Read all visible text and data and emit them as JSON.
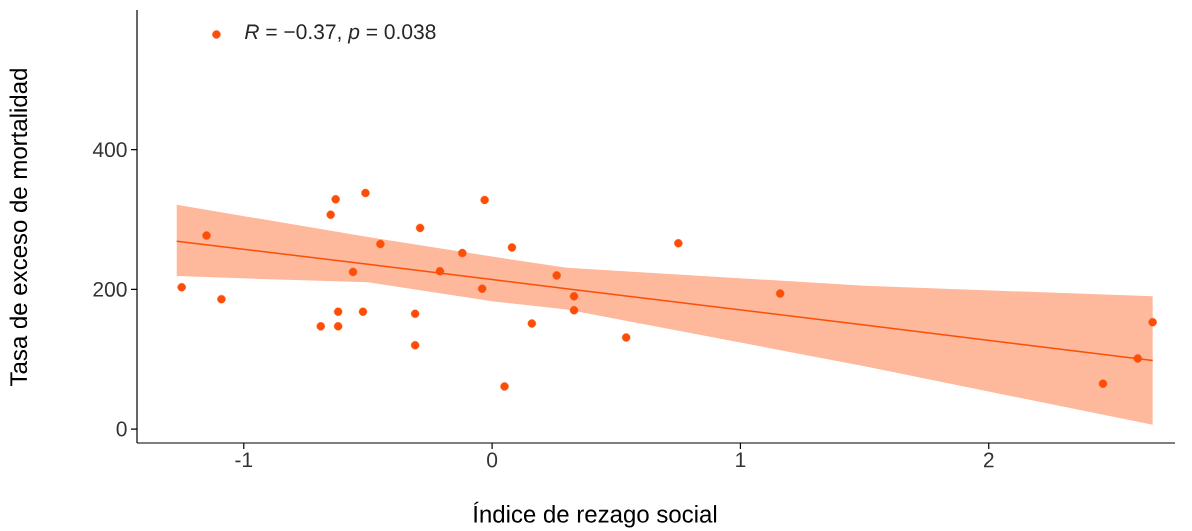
{
  "chart_data": {
    "type": "scatter",
    "xlabel": "Índice de rezago social",
    "ylabel": "Tasa de exceso de mortalidad",
    "annotations": [
      "*R* = −0.37, *p* = 0.038"
    ],
    "xlim": [
      -1.43,
      2.75
    ],
    "ylim": [
      -20,
      600
    ],
    "xticks": [
      -1,
      0,
      1,
      2
    ],
    "yticks": [
      0,
      200,
      400
    ],
    "grid": false,
    "series": [
      {
        "type": "scatter",
        "color": "#fc4e07",
        "marker": "circle",
        "x": [
          -1.25,
          -1.15,
          -1.11,
          -1.09,
          -0.69,
          -0.62,
          -0.62,
          -0.65,
          -0.63,
          -0.56,
          -0.51,
          -0.52,
          -0.45,
          -0.31,
          -0.31,
          -0.29,
          -0.21,
          -0.12,
          -0.04,
          -0.03,
          0.05,
          0.08,
          0.16,
          0.26,
          0.33,
          0.33,
          0.54,
          0.75,
          1.16,
          2.46,
          2.6,
          2.66
        ],
        "values": [
          203,
          277,
          565,
          186,
          147,
          168,
          147,
          307,
          329,
          225,
          338,
          168,
          265,
          165,
          120,
          288,
          226,
          252,
          201,
          328,
          61,
          260,
          151,
          220,
          190,
          170,
          131,
          266,
          194,
          65,
          101,
          153
        ]
      },
      {
        "type": "line",
        "color": "#fc4e07",
        "marker": "none",
        "x": [
          -1.27,
          -0.5,
          0,
          0.3,
          1.5,
          2.66
        ],
        "values": [
          269,
          236,
          214,
          201,
          149,
          98
        ],
        "lower": [
          219,
          210,
          183,
          171,
          90,
          6
        ],
        "upper": [
          321,
          275,
          247,
          231,
          205,
          190
        ]
      }
    ]
  }
}
